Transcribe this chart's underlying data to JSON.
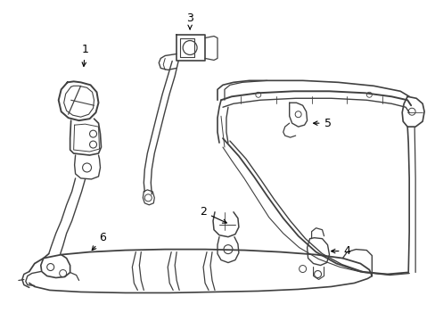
{
  "bg_color": "#ffffff",
  "line_color": "#404040",
  "label_color": "#000000",
  "fig_width": 4.89,
  "fig_height": 3.6,
  "dpi": 100
}
